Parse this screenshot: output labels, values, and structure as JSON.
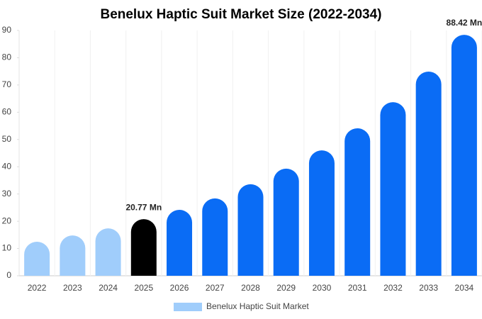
{
  "chart_data": {
    "type": "bar",
    "title": "Benelux Haptic Suit Market Size (2022-2034)",
    "categories": [
      "2022",
      "2023",
      "2024",
      "2025",
      "2026",
      "2027",
      "2028",
      "2029",
      "2030",
      "2031",
      "2032",
      "2033",
      "2034"
    ],
    "series": [
      {
        "name": "Benelux Haptic Suit Market",
        "color": "#a0cdfb",
        "values": [
          12.5,
          14.8,
          17.4,
          20.77,
          24.2,
          28.4,
          33.6,
          39.3,
          46.0,
          54.1,
          63.7,
          74.9,
          88.42
        ],
        "value_labels": [
          null,
          null,
          null,
          "20.77 Mn",
          null,
          null,
          null,
          null,
          null,
          null,
          null,
          null,
          "88.42 Mn"
        ],
        "colors": [
          "#a0cdfb",
          "#a0cdfb",
          "#a0cdfb",
          "#000000",
          "#0a6cf5",
          "#0a6cf5",
          "#0a6cf5",
          "#0a6cf5",
          "#0a6cf5",
          "#0a6cf5",
          "#0a6cf5",
          "#0a6cf5",
          "#0a6cf5"
        ]
      }
    ],
    "ylim": [
      0,
      90
    ],
    "yticks": [
      0,
      10,
      20,
      30,
      40,
      50,
      60,
      70,
      80,
      90
    ]
  }
}
